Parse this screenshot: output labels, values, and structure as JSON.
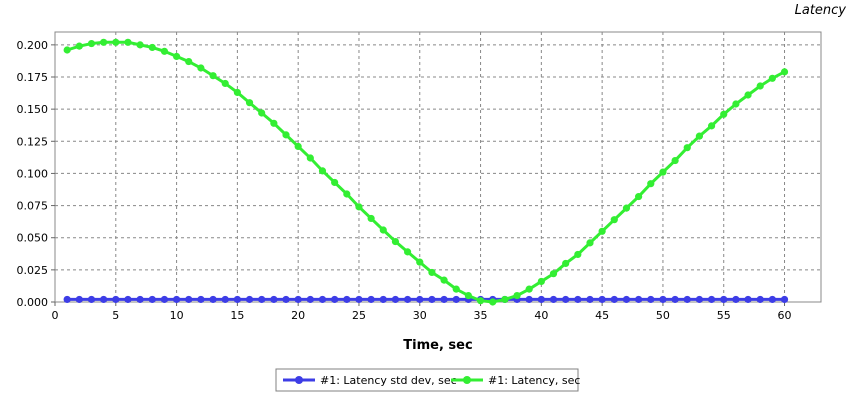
{
  "chart_data": {
    "type": "line",
    "title": "Latency",
    "xlabel": "Time, sec",
    "ylabel": "",
    "xlim": [
      0,
      63
    ],
    "ylim": [
      0,
      0.21
    ],
    "xticks": [
      "0",
      "5",
      "10",
      "15",
      "20",
      "25",
      "30",
      "35",
      "40",
      "45",
      "50",
      "55",
      "60"
    ],
    "yticks": [
      "0.000",
      "0.025",
      "0.050",
      "0.075",
      "0.100",
      "0.125",
      "0.150",
      "0.175",
      "0.200"
    ],
    "grid": true,
    "legend_position": "bottom",
    "x": [
      1,
      2,
      3,
      4,
      5,
      6,
      7,
      8,
      9,
      10,
      11,
      12,
      13,
      14,
      15,
      16,
      17,
      18,
      19,
      20,
      21,
      22,
      23,
      24,
      25,
      26,
      27,
      28,
      29,
      30,
      31,
      32,
      33,
      34,
      35,
      36,
      37,
      38,
      39,
      40,
      41,
      42,
      43,
      44,
      45,
      46,
      47,
      48,
      49,
      50,
      51,
      52,
      53,
      54,
      55,
      56,
      57,
      58,
      59,
      60
    ],
    "series": [
      {
        "name": "#1: Latency std dev, sec",
        "color": "#3d3de6",
        "values": [
          0.002,
          0.002,
          0.002,
          0.002,
          0.002,
          0.002,
          0.002,
          0.002,
          0.002,
          0.002,
          0.002,
          0.002,
          0.002,
          0.002,
          0.002,
          0.002,
          0.002,
          0.002,
          0.002,
          0.002,
          0.002,
          0.002,
          0.002,
          0.002,
          0.002,
          0.002,
          0.002,
          0.002,
          0.002,
          0.002,
          0.002,
          0.002,
          0.002,
          0.002,
          0.002,
          0.002,
          0.002,
          0.002,
          0.002,
          0.002,
          0.002,
          0.002,
          0.002,
          0.002,
          0.002,
          0.002,
          0.002,
          0.002,
          0.002,
          0.002,
          0.002,
          0.002,
          0.002,
          0.002,
          0.002,
          0.002,
          0.002,
          0.002,
          0.002,
          0.002
        ]
      },
      {
        "name": "#1: Latency, sec",
        "color": "#33ee33",
        "values": [
          0.196,
          0.199,
          0.201,
          0.202,
          0.202,
          0.202,
          0.2,
          0.198,
          0.195,
          0.191,
          0.187,
          0.182,
          0.176,
          0.17,
          0.163,
          0.155,
          0.147,
          0.139,
          0.13,
          0.121,
          0.112,
          0.102,
          0.093,
          0.084,
          0.074,
          0.065,
          0.056,
          0.047,
          0.039,
          0.031,
          0.023,
          0.017,
          0.01,
          0.005,
          0.001,
          0.0,
          0.002,
          0.005,
          0.01,
          0.016,
          0.022,
          0.03,
          0.037,
          0.046,
          0.055,
          0.064,
          0.073,
          0.082,
          0.092,
          0.101,
          0.11,
          0.12,
          0.129,
          0.137,
          0.146,
          0.154,
          0.161,
          0.168,
          0.174,
          0.179
        ]
      }
    ]
  }
}
